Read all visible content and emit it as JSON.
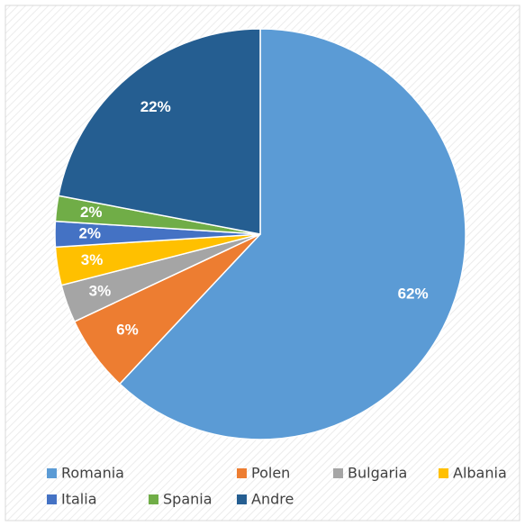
{
  "chart_data": {
    "type": "pie",
    "categories": [
      "Romania",
      "Polen",
      "Bulgaria",
      "Albania",
      "Italia",
      "Spania",
      "Andre"
    ],
    "values": [
      62,
      6,
      3,
      3,
      2,
      2,
      22
    ],
    "value_labels": [
      "62%",
      "6%",
      "3%",
      "3%",
      "2%",
      "2%",
      "22%"
    ],
    "colors": [
      "#5b9bd5",
      "#ed7d31",
      "#a5a5a5",
      "#ffc000",
      "#4472c4",
      "#70ad47",
      "#255e91"
    ],
    "legend": "bottom"
  }
}
